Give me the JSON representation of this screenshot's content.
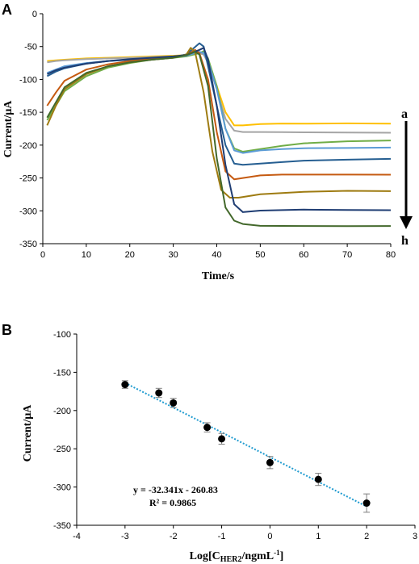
{
  "chart_data": [
    {
      "panel": "A",
      "type": "line",
      "xlabel": "Time/s",
      "ylabel": "Current/µA",
      "xlim": [
        0,
        80
      ],
      "ylim": [
        -350,
        0
      ],
      "xticks": [
        "0",
        "10",
        "20",
        "30",
        "40",
        "50",
        "60",
        "70",
        "80"
      ],
      "yticks": [
        "0",
        "-50",
        "-100",
        "-150",
        "-200",
        "-250",
        "-300",
        "-350"
      ],
      "grid": false,
      "arrow": {
        "top_label": "a",
        "bottom_label": "h"
      },
      "series": [
        {
          "color": "#ffc000",
          "plateau": -167,
          "peak_time": 36,
          "drop_time": 44,
          "x": [
            1,
            3,
            5,
            10,
            15,
            20,
            25,
            30,
            33,
            36,
            37,
            38,
            40,
            42,
            44,
            46,
            50,
            55,
            60,
            70,
            80
          ],
          "y": [
            -72,
            -71,
            -70,
            -68,
            -67,
            -66,
            -65,
            -64,
            -63,
            -60,
            -62,
            -72,
            -110,
            -150,
            -170,
            -170,
            -169,
            -168,
            -168,
            -167,
            -167
          ]
        },
        {
          "color": "#a5a5a5",
          "plateau": -180,
          "peak_time": 36,
          "drop_time": 44,
          "x": [
            1,
            3,
            5,
            10,
            15,
            20,
            25,
            30,
            33,
            36,
            37,
            38,
            40,
            42,
            44,
            46,
            50,
            55,
            60,
            70,
            80
          ],
          "y": [
            -74,
            -72,
            -71,
            -69,
            -68,
            -67,
            -66,
            -65,
            -64,
            -60,
            -62,
            -75,
            -115,
            -160,
            -178,
            -180,
            -180,
            -180,
            -180,
            -180,
            -180
          ]
        },
        {
          "color": "#70ad47",
          "plateau": -192,
          "peak_time": 37,
          "drop_time": 44,
          "x": [
            1,
            3,
            5,
            10,
            15,
            20,
            25,
            30,
            33,
            36,
            37,
            38,
            40,
            42,
            44,
            46,
            50,
            55,
            60,
            70,
            80
          ],
          "y": [
            -162,
            -140,
            -118,
            -95,
            -82,
            -75,
            -70,
            -67,
            -65,
            -60,
            -57,
            -68,
            -110,
            -175,
            -205,
            -210,
            -205,
            -200,
            -196,
            -193,
            -192
          ]
        },
        {
          "color": "#5b9bd5",
          "plateau": -204,
          "peak_time": 36,
          "drop_time": 44,
          "x": [
            1,
            3,
            5,
            10,
            15,
            20,
            25,
            30,
            33,
            36,
            37,
            38,
            40,
            42,
            44,
            46,
            50,
            55,
            60,
            70,
            80
          ],
          "y": [
            -90,
            -85,
            -80,
            -75,
            -72,
            -70,
            -68,
            -66,
            -64,
            -58,
            -60,
            -72,
            -115,
            -175,
            -208,
            -212,
            -207,
            -205,
            -204,
            -204,
            -204
          ]
        },
        {
          "color": "#255e91",
          "plateau": -222,
          "peak_time": 36,
          "drop_time": 44,
          "x": [
            1,
            3,
            5,
            10,
            15,
            20,
            25,
            30,
            33,
            36,
            37,
            38,
            40,
            42,
            44,
            46,
            50,
            55,
            60,
            70,
            80
          ],
          "y": [
            -95,
            -88,
            -83,
            -76,
            -72,
            -70,
            -68,
            -66,
            -62,
            -45,
            -50,
            -80,
            -140,
            -200,
            -228,
            -230,
            -228,
            -226,
            -224,
            -223,
            -222
          ]
        },
        {
          "color": "#c55a11",
          "plateau": -246,
          "peak_time": 35,
          "drop_time": 42,
          "x": [
            1,
            3,
            5,
            10,
            15,
            20,
            25,
            30,
            33,
            35,
            36,
            38,
            40,
            42,
            44,
            46,
            50,
            55,
            60,
            70,
            80
          ],
          "y": [
            -140,
            -120,
            -102,
            -85,
            -77,
            -72,
            -69,
            -66,
            -63,
            -55,
            -60,
            -100,
            -180,
            -240,
            -252,
            -250,
            -247,
            -246,
            -246,
            -246,
            -246
          ]
        },
        {
          "color": "#9e7b11",
          "plateau": -270,
          "peak_time": 34,
          "drop_time": 41,
          "x": [
            1,
            3,
            5,
            10,
            15,
            20,
            25,
            30,
            33,
            34,
            35,
            37,
            39,
            41,
            43,
            45,
            50,
            55,
            60,
            70,
            80
          ],
          "y": [
            -170,
            -140,
            -115,
            -92,
            -80,
            -74,
            -70,
            -67,
            -62,
            -52,
            -58,
            -120,
            -210,
            -268,
            -280,
            -280,
            -276,
            -274,
            -272,
            -270,
            -270
          ]
        },
        {
          "color": "#1f3d73",
          "plateau": -298,
          "peak_time": 37,
          "drop_time": 45,
          "x": [
            1,
            3,
            5,
            10,
            15,
            20,
            25,
            30,
            33,
            36,
            37,
            38,
            40,
            42,
            44,
            46,
            50,
            55,
            60,
            70,
            80
          ],
          "y": [
            -92,
            -86,
            -82,
            -76,
            -72,
            -69,
            -67,
            -65,
            -63,
            -55,
            -52,
            -70,
            -140,
            -230,
            -290,
            -302,
            -300,
            -299,
            -298,
            -298,
            -298
          ]
        },
        {
          "color": "#43682b",
          "plateau": -322,
          "peak_time": 35,
          "drop_time": 42,
          "x": [
            1,
            3,
            5,
            10,
            15,
            20,
            25,
            30,
            33,
            35,
            36,
            38,
            40,
            42,
            44,
            46,
            50,
            55,
            60,
            70,
            80
          ],
          "y": [
            -158,
            -135,
            -112,
            -90,
            -80,
            -74,
            -70,
            -67,
            -63,
            -58,
            -62,
            -110,
            -220,
            -295,
            -315,
            -320,
            -322,
            -322,
            -322,
            -322,
            -322
          ]
        }
      ]
    },
    {
      "panel": "B",
      "type": "scatter",
      "xlabel_prefix": "Log[C",
      "xlabel_sub": "HER2",
      "xlabel_mid": "/ngmL",
      "xlabel_sup": "-1",
      "xlabel_suffix": "]",
      "ylabel": "Current/µA",
      "xlim": [
        -4,
        3
      ],
      "ylim": [
        -350,
        -100
      ],
      "xticks": [
        "-4",
        "-3",
        "-2",
        "-1",
        "0",
        "1",
        "2",
        "3"
      ],
      "yticks": [
        "-100",
        "-150",
        "-200",
        "-250",
        "-300",
        "-350"
      ],
      "grid": false,
      "points": {
        "x": [
          -3,
          -2.3,
          -2,
          -1.3,
          -1,
          0,
          1,
          2
        ],
        "y": [
          -166,
          -177,
          -190,
          -222,
          -237,
          -268,
          -290,
          -321
        ],
        "err": [
          5,
          6,
          6,
          6,
          7,
          8,
          8,
          12
        ]
      },
      "trendline": {
        "slope": -32.341,
        "intercept": -260.83,
        "x_range": [
          -3,
          2
        ],
        "color": "#1f9bd0"
      },
      "equation": "y = -32.341x - 260.83",
      "r2": "R² = 0.9865"
    }
  ],
  "colors": {
    "axis": "#000000",
    "marker": "#000000",
    "errorbar": "#7f7f7f"
  }
}
